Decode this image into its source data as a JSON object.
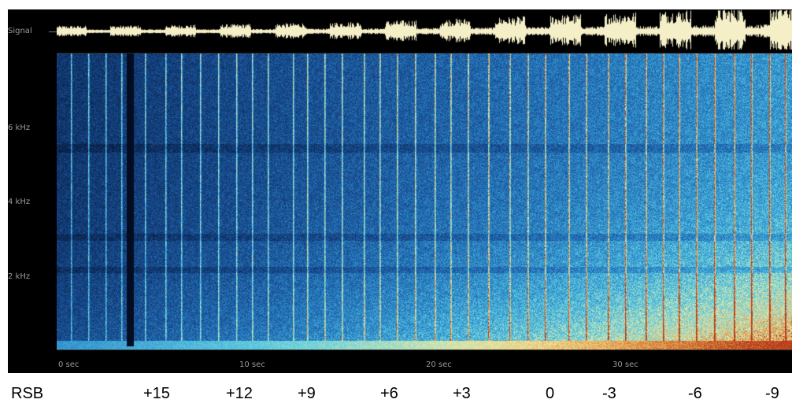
{
  "signal_label": "Signal",
  "frequency_labels": [
    "6 kHz",
    "4 kHz",
    "2 kHz"
  ],
  "time_labels": [
    "0  sec",
    "10  sec",
    "20  sec",
    "30  sec"
  ],
  "rsb": {
    "title": "RSB",
    "values": [
      "+15",
      "+12",
      "+9",
      "+6",
      "+3",
      "0",
      "-3",
      "-6",
      "-9"
    ]
  },
  "colors": {
    "background": "#000000",
    "waveform": "#f5efc8",
    "spectrogram_low": "#0a2550",
    "spectrogram_mid": "#2f8fcf",
    "spectrogram_high": "#f0e8a0",
    "spectrogram_peak": "#b83a1a"
  }
}
